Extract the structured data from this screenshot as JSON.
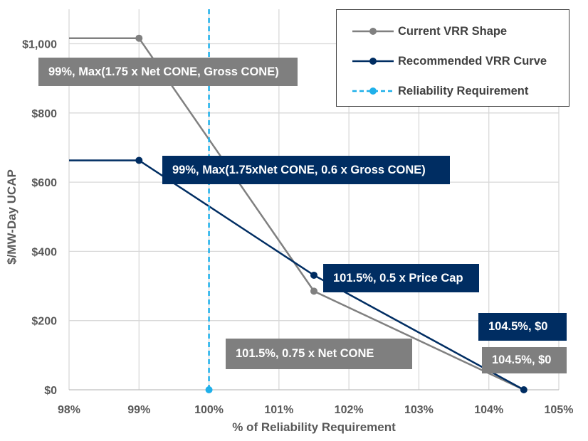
{
  "chart_data": {
    "type": "line",
    "xlabel": "% of Reliability Requirement",
    "ylabel": "$/MW-Day UCAP",
    "xlim": [
      98,
      105
    ],
    "ylim": [
      0,
      1100
    ],
    "x_ticks": [
      98,
      99,
      100,
      101,
      102,
      103,
      104,
      105
    ],
    "x_tick_labels": [
      "98%",
      "99%",
      "100%",
      "101%",
      "102%",
      "103%",
      "104%",
      "105%"
    ],
    "y_ticks": [
      0,
      200,
      400,
      600,
      800,
      1000
    ],
    "y_tick_labels": [
      "$0",
      "$200",
      "$400",
      "$600",
      "$800",
      "$1,000"
    ],
    "grid": true,
    "legend_position": "top-right",
    "series": [
      {
        "name": "Current VRR Shape",
        "color": "#808080",
        "style": "solid",
        "points": [
          [
            98,
            1016
          ],
          [
            99,
            1016
          ],
          [
            101.5,
            285
          ],
          [
            104.5,
            0
          ]
        ],
        "markers": [
          [
            99,
            1016
          ],
          [
            101.5,
            285
          ]
        ]
      },
      {
        "name": "Recommended VRR Curve",
        "color": "#002d62",
        "style": "solid",
        "points": [
          [
            98,
            663
          ],
          [
            99,
            663
          ],
          [
            101.5,
            331
          ],
          [
            104.5,
            0
          ]
        ],
        "markers": [
          [
            99,
            663
          ],
          [
            101.5,
            331
          ],
          [
            104.5,
            0
          ]
        ]
      },
      {
        "name": "Reliability Requirement",
        "color": "#1fb0ea",
        "style": "dashed",
        "points": [
          [
            100,
            0
          ],
          [
            100,
            1100
          ]
        ],
        "markers": [
          [
            100,
            0
          ]
        ]
      }
    ],
    "annotations": [
      {
        "text": "99%, Max(1.75 x Net CONE, Gross CONE)",
        "series": "Current VRR Shape"
      },
      {
        "text": "99%, Max(1.75xNet CONE, 0.6 x Gross CONE)",
        "series": "Recommended VRR Curve"
      },
      {
        "text": "101.5%, 0.5 x Price Cap",
        "series": "Recommended VRR Curve"
      },
      {
        "text": "101.5%, 0.75 x Net CONE",
        "series": "Current VRR Shape"
      },
      {
        "text": "104.5%, $0",
        "series": "Recommended VRR Curve"
      },
      {
        "text": "104.5%, $0",
        "series": "Current VRR Shape"
      }
    ]
  }
}
